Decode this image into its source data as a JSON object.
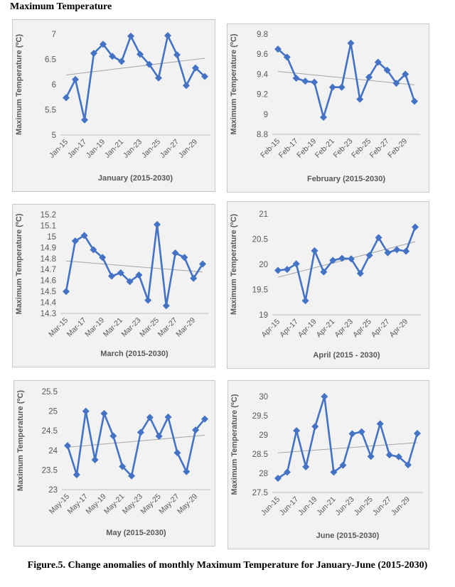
{
  "page_title": "Maximum Temperature",
  "caption": "Figure.5. Change anomalies of monthly Maximum Temperature for January-June (2015-2030)",
  "colors": {
    "series": "#4472c4",
    "trend": "#a5a5a5",
    "panel_bg": "#f2f2f2",
    "text": "#595959"
  },
  "chart_data": [
    {
      "type": "line",
      "xlabel": "January (2015-2030)",
      "ylabel": "Maximum Temperature (ºC)",
      "ylim": [
        5,
        7
      ],
      "yticks": [
        "5",
        "5.5",
        "6",
        "6.5",
        "7"
      ],
      "x": [
        "Jan-15",
        "Jan-16",
        "Jan-17",
        "Jan-18",
        "Jan-19",
        "Jan-20",
        "Jan-21",
        "Jan-22",
        "Jan-23",
        "Jan-24",
        "Jan-25",
        "Jan-26",
        "Jan-27",
        "Jan-28",
        "Jan-29",
        "Jan-30"
      ],
      "xticklabels": [
        "Jan-15",
        "Jan-17",
        "Jan-19",
        "Jan-21",
        "Jan-23",
        "Jan-25",
        "Jan-27",
        "Jan-29"
      ],
      "values": [
        5.74,
        6.1,
        5.3,
        6.62,
        6.8,
        6.56,
        6.46,
        6.96,
        6.6,
        6.4,
        6.13,
        6.97,
        6.59,
        5.98,
        6.33,
        6.16
      ],
      "trendline": "linear",
      "grid": false,
      "legend": "none"
    },
    {
      "type": "line",
      "xlabel": "February (2015-2030)",
      "ylabel": "Maximum Temperature (ºC)",
      "ylim": [
        8.8,
        9.8
      ],
      "yticks": [
        "8.8",
        "9",
        "9.2",
        "9.4",
        "9.6",
        "9.8"
      ],
      "x": [
        "Feb-15",
        "Feb-16",
        "Feb-17",
        "Feb-18",
        "Feb-19",
        "Feb-20",
        "Feb-21",
        "Feb-22",
        "Feb-23",
        "Feb-24",
        "Feb-25",
        "Feb-26",
        "Feb-27",
        "Feb-28",
        "Feb-29",
        "Feb-30"
      ],
      "xticklabels": [
        "Feb-15",
        "Feb-17",
        "Feb-19",
        "Feb-21",
        "Feb-23",
        "Feb-25",
        "Feb-27",
        "Feb-29"
      ],
      "values": [
        9.65,
        9.57,
        9.36,
        9.33,
        9.32,
        8.97,
        9.27,
        9.27,
        9.71,
        9.15,
        9.37,
        9.52,
        9.44,
        9.31,
        9.4,
        9.13
      ],
      "trendline": "linear",
      "grid": false,
      "legend": "none"
    },
    {
      "type": "line",
      "xlabel": "March (2015-2030)",
      "ylabel": "Maximum Temperature (ºC)",
      "ylim": [
        14.3,
        15.2
      ],
      "yticks": [
        "14.3",
        "14.4",
        "14.5",
        "14.6",
        "14.7",
        "14.8",
        "14.9",
        "15",
        "15.1",
        "15.2"
      ],
      "x": [
        "Mar-15",
        "Mar-16",
        "Mar-17",
        "Mar-18",
        "Mar-19",
        "Mar-20",
        "Mar-21",
        "Mar-22",
        "Mar-23",
        "Mar-24",
        "Mar-25",
        "Mar-26",
        "Mar-27",
        "Mar-28",
        "Mar-29",
        "Mar-30"
      ],
      "xticklabels": [
        "Mar-15",
        "Mar-17",
        "Mar-19",
        "Mar-21",
        "Mar-23",
        "Mar-25",
        "Mar-27",
        "Mar-29"
      ],
      "values": [
        14.5,
        14.96,
        15.01,
        14.88,
        14.81,
        14.64,
        14.67,
        14.59,
        14.65,
        14.42,
        15.11,
        14.37,
        14.85,
        14.81,
        14.62,
        14.75
      ],
      "trendline": "linear",
      "grid": false,
      "legend": "none"
    },
    {
      "type": "line",
      "xlabel": "April (2015 - 2030)",
      "ylabel": "Maximum Temperature (ºC)",
      "ylim": [
        19,
        21
      ],
      "yticks": [
        "19",
        "19.5",
        "20",
        "20.5",
        "21"
      ],
      "x": [
        "Apr-15",
        "Apr-16",
        "Apr-17",
        "Apr-18",
        "Apr-19",
        "Apr-20",
        "Apr-21",
        "Apr-22",
        "Apr-23",
        "Apr-24",
        "Apr-25",
        "Apr-26",
        "Apr-27",
        "Apr-28",
        "Apr-29",
        "Apr-30"
      ],
      "xticklabels": [
        "Apr-15",
        "Apr-17",
        "Apr-19",
        "Apr-21",
        "Apr-23",
        "Apr-25",
        "Apr-27",
        "Apr-29"
      ],
      "values": [
        19.88,
        19.9,
        20.01,
        19.28,
        20.27,
        19.85,
        20.08,
        20.12,
        20.11,
        19.82,
        20.18,
        20.53,
        20.23,
        20.29,
        20.26,
        20.74
      ],
      "trendline": "linear",
      "grid": false,
      "legend": "none"
    },
    {
      "type": "line",
      "xlabel": "May (2015-2030)",
      "ylabel": "Maximum Temperature (ºC)",
      "ylim": [
        23,
        25.5
      ],
      "yticks": [
        "23",
        "23.5",
        "24",
        "24.5",
        "25",
        "25.5"
      ],
      "x": [
        "May-15",
        "May-16",
        "May-17",
        "May-18",
        "May-19",
        "May-20",
        "May-21",
        "May-22",
        "May-23",
        "May-24",
        "May-25",
        "May-26",
        "May-27",
        "May-28",
        "May-29",
        "May-30"
      ],
      "xticklabels": [
        "May-15",
        "May-17",
        "May-19",
        "May-21",
        "May-23",
        "May-25",
        "May-27",
        "May-29"
      ],
      "values": [
        24.12,
        23.38,
        25.0,
        23.76,
        24.94,
        24.37,
        23.59,
        23.35,
        24.46,
        24.84,
        24.36,
        24.85,
        23.94,
        23.46,
        24.52,
        24.8
      ],
      "trendline": "linear",
      "grid": false,
      "legend": "none"
    },
    {
      "type": "line",
      "xlabel": "June (2015-2030)",
      "ylabel": "Maximum Temperature (ºC)",
      "ylim": [
        27.5,
        30
      ],
      "yticks": [
        "27.5",
        "28",
        "28.5",
        "29",
        "29.5",
        "30"
      ],
      "x": [
        "Jun-15",
        "Jun-16",
        "Jun-17",
        "Jun-18",
        "Jun-19",
        "Jun-20",
        "Jun-21",
        "Jun-22",
        "Jun-23",
        "Jun-24",
        "Jun-25",
        "Jun-26",
        "Jun-27",
        "Jun-28",
        "Jun-29",
        "Jun-30"
      ],
      "xticklabels": [
        "Jun-15",
        "Jun-17",
        "Jun-19",
        "Jun-21",
        "Jun-23",
        "Jun-25",
        "Jun-27",
        "Jun-29"
      ],
      "values": [
        27.87,
        28.03,
        29.11,
        28.17,
        29.22,
        30.0,
        28.03,
        28.21,
        29.03,
        29.08,
        28.44,
        29.29,
        28.48,
        28.43,
        28.22,
        29.04
      ],
      "trendline": "linear",
      "grid": false,
      "legend": "none"
    }
  ]
}
